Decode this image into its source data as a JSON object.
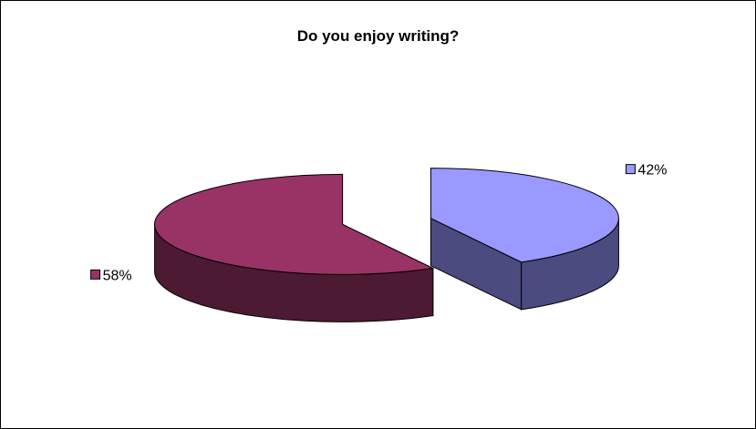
{
  "chart_data": {
    "type": "pie",
    "style": "3d-exploded",
    "title": "Do you enjoy writing?",
    "slices": [
      {
        "label": "42%",
        "value": 42,
        "color": "#9999ff",
        "side_color": "#4b4b80"
      },
      {
        "label": "58%",
        "value": 58,
        "color": "#993366",
        "side_color": "#4d1a33"
      }
    ],
    "legend": "none"
  }
}
